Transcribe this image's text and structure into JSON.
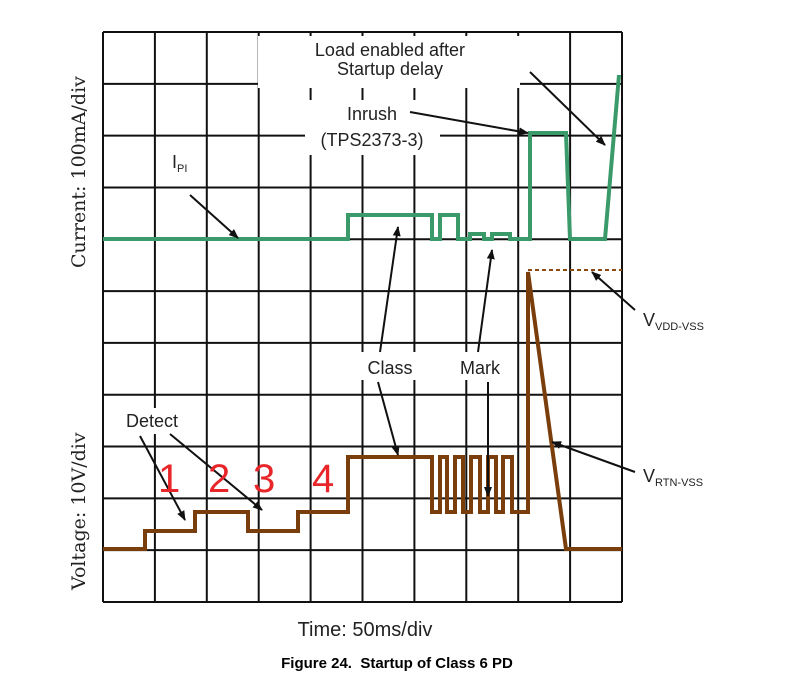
{
  "figure": {
    "load_label": [
      "Load enabled after",
      "Startup delay"
    ],
    "inrush_label": [
      "Inrush",
      "(TPS2373-3)"
    ],
    "ipi_label": {
      "base": "I",
      "sub": "PI"
    },
    "vdd_label": {
      "base": "V",
      "sub": "VDD-VSS"
    },
    "rtn_label": {
      "base": "V",
      "sub": "RTN-VSS"
    },
    "class_label": "Class",
    "mark_label": "Mark",
    "detect_label": "Detect",
    "steps": [
      "1",
      "2",
      "3",
      "4"
    ],
    "y_label_current": "Current: 100mA/div",
    "y_label_voltage": "Voltage: 10V/div",
    "x_label": "Time: 50ms/div",
    "caption": "Figure 24.  Startup of Class 6 PD"
  }
}
